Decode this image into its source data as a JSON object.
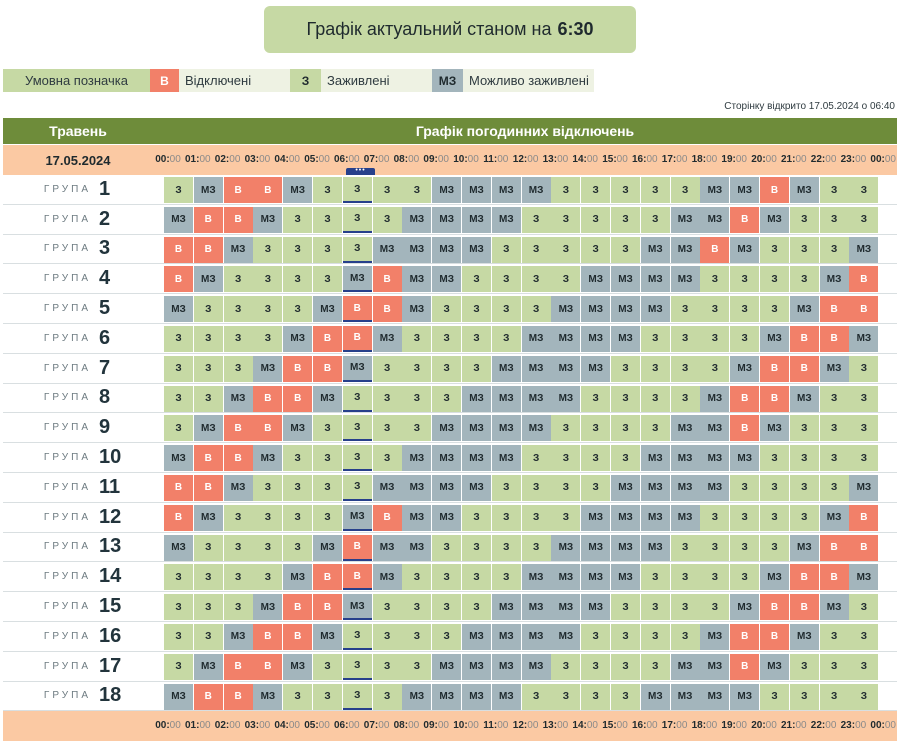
{
  "title": {
    "prefix": "Графік актуальний станом на",
    "time": "6:30"
  },
  "legend": {
    "label": "Умовна позначка",
    "items": [
      {
        "code": "В",
        "text": "Відключені",
        "kind": "v"
      },
      {
        "code": "З",
        "text": "Заживлені",
        "kind": "z"
      },
      {
        "code": "МЗ",
        "text": "Можливо заживлені",
        "kind": "mz"
      }
    ]
  },
  "opened_text": "Сторінку відкрито 17.05.2024 о 06:40",
  "header": {
    "month": "Травень",
    "graph_title": "Графік погодинних відключень"
  },
  "date": "17.05.2024",
  "hours": [
    "00",
    "01",
    "02",
    "03",
    "04",
    "05",
    "06",
    "07",
    "08",
    "09",
    "10",
    "11",
    "12",
    "13",
    "14",
    "15",
    "16",
    "17",
    "18",
    "19",
    "20",
    "21",
    "22",
    "23",
    "00"
  ],
  "minutes": "00",
  "current_hour_index": 6,
  "current_marker": "•••",
  "group_word": "ГРУПА",
  "codes": {
    "z": "З",
    "v": "В",
    "mz": "МЗ"
  },
  "groups": [
    {
      "num": "1",
      "cells": [
        "z",
        "mz",
        "v",
        "v",
        "mz",
        "z",
        "z",
        "z",
        "z",
        "mz",
        "mz",
        "mz",
        "mz",
        "z",
        "z",
        "z",
        "z",
        "z",
        "mz",
        "mz",
        "v",
        "mz",
        "z",
        "z"
      ]
    },
    {
      "num": "2",
      "cells": [
        "mz",
        "v",
        "v",
        "mz",
        "z",
        "z",
        "z",
        "z",
        "mz",
        "mz",
        "mz",
        "mz",
        "z",
        "z",
        "z",
        "z",
        "z",
        "mz",
        "mz",
        "v",
        "mz",
        "z",
        "z",
        "z"
      ]
    },
    {
      "num": "3",
      "cells": [
        "v",
        "v",
        "mz",
        "z",
        "z",
        "z",
        "z",
        "mz",
        "mz",
        "mz",
        "mz",
        "z",
        "z",
        "z",
        "z",
        "z",
        "mz",
        "mz",
        "v",
        "mz",
        "z",
        "z",
        "z",
        "mz"
      ]
    },
    {
      "num": "4",
      "cells": [
        "v",
        "mz",
        "z",
        "z",
        "z",
        "z",
        "mz",
        "v",
        "mz",
        "mz",
        "z",
        "z",
        "z",
        "z",
        "mz",
        "mz",
        "mz",
        "mz",
        "z",
        "z",
        "z",
        "z",
        "mz",
        "v"
      ]
    },
    {
      "num": "5",
      "cells": [
        "mz",
        "z",
        "z",
        "z",
        "z",
        "mz",
        "v",
        "v",
        "mz",
        "z",
        "z",
        "z",
        "z",
        "mz",
        "mz",
        "mz",
        "mz",
        "z",
        "z",
        "z",
        "z",
        "mz",
        "v",
        "v"
      ]
    },
    {
      "num": "6",
      "cells": [
        "z",
        "z",
        "z",
        "z",
        "mz",
        "v",
        "v",
        "mz",
        "z",
        "z",
        "z",
        "z",
        "mz",
        "mz",
        "mz",
        "mz",
        "z",
        "z",
        "z",
        "z",
        "mz",
        "v",
        "v",
        "mz"
      ]
    },
    {
      "num": "7",
      "cells": [
        "z",
        "z",
        "z",
        "mz",
        "v",
        "v",
        "mz",
        "z",
        "z",
        "z",
        "z",
        "mz",
        "mz",
        "mz",
        "mz",
        "z",
        "z",
        "z",
        "z",
        "mz",
        "v",
        "v",
        "mz",
        "z"
      ]
    },
    {
      "num": "8",
      "cells": [
        "z",
        "z",
        "mz",
        "v",
        "v",
        "mz",
        "z",
        "z",
        "z",
        "z",
        "mz",
        "mz",
        "mz",
        "mz",
        "z",
        "z",
        "z",
        "z",
        "mz",
        "v",
        "v",
        "mz",
        "z",
        "z"
      ]
    },
    {
      "num": "9",
      "cells": [
        "z",
        "mz",
        "v",
        "v",
        "mz",
        "z",
        "z",
        "z",
        "z",
        "mz",
        "mz",
        "mz",
        "mz",
        "z",
        "z",
        "z",
        "z",
        "mz",
        "mz",
        "v",
        "mz",
        "z",
        "z",
        "z"
      ]
    },
    {
      "num": "10",
      "cells": [
        "mz",
        "v",
        "v",
        "mz",
        "z",
        "z",
        "z",
        "z",
        "mz",
        "mz",
        "mz",
        "mz",
        "z",
        "z",
        "z",
        "z",
        "mz",
        "mz",
        "mz",
        "mz",
        "z",
        "z",
        "z",
        "z"
      ]
    },
    {
      "num": "11",
      "cells": [
        "v",
        "v",
        "mz",
        "z",
        "z",
        "z",
        "z",
        "mz",
        "mz",
        "mz",
        "mz",
        "z",
        "z",
        "z",
        "z",
        "mz",
        "mz",
        "mz",
        "mz",
        "z",
        "z",
        "z",
        "z",
        "mz"
      ]
    },
    {
      "num": "12",
      "cells": [
        "v",
        "mz",
        "z",
        "z",
        "z",
        "z",
        "mz",
        "v",
        "mz",
        "mz",
        "z",
        "z",
        "z",
        "z",
        "mz",
        "mz",
        "mz",
        "mz",
        "z",
        "z",
        "z",
        "z",
        "mz",
        "v"
      ]
    },
    {
      "num": "13",
      "cells": [
        "mz",
        "z",
        "z",
        "z",
        "z",
        "mz",
        "v",
        "mz",
        "mz",
        "z",
        "z",
        "z",
        "z",
        "mz",
        "mz",
        "mz",
        "mz",
        "z",
        "z",
        "z",
        "z",
        "mz",
        "v",
        "v"
      ]
    },
    {
      "num": "14",
      "cells": [
        "z",
        "z",
        "z",
        "z",
        "mz",
        "v",
        "v",
        "mz",
        "z",
        "z",
        "z",
        "z",
        "mz",
        "mz",
        "mz",
        "mz",
        "z",
        "z",
        "z",
        "z",
        "mz",
        "v",
        "v",
        "mz"
      ]
    },
    {
      "num": "15",
      "cells": [
        "z",
        "z",
        "z",
        "mz",
        "v",
        "v",
        "mz",
        "z",
        "z",
        "z",
        "z",
        "mz",
        "mz",
        "mz",
        "mz",
        "z",
        "z",
        "z",
        "z",
        "mz",
        "v",
        "v",
        "mz",
        "z"
      ]
    },
    {
      "num": "16",
      "cells": [
        "z",
        "z",
        "mz",
        "v",
        "v",
        "mz",
        "z",
        "z",
        "z",
        "z",
        "mz",
        "mz",
        "mz",
        "mz",
        "z",
        "z",
        "z",
        "z",
        "mz",
        "v",
        "v",
        "mz",
        "z",
        "z"
      ]
    },
    {
      "num": "17",
      "cells": [
        "z",
        "mz",
        "v",
        "v",
        "mz",
        "z",
        "z",
        "z",
        "z",
        "mz",
        "mz",
        "mz",
        "mz",
        "z",
        "z",
        "z",
        "z",
        "mz",
        "mz",
        "v",
        "mz",
        "z",
        "z",
        "z"
      ]
    },
    {
      "num": "18",
      "cells": [
        "mz",
        "v",
        "v",
        "mz",
        "z",
        "z",
        "z",
        "z",
        "mz",
        "mz",
        "mz",
        "mz",
        "z",
        "z",
        "z",
        "z",
        "mz",
        "mz",
        "mz",
        "mz",
        "z",
        "z",
        "z",
        "z"
      ]
    }
  ]
}
